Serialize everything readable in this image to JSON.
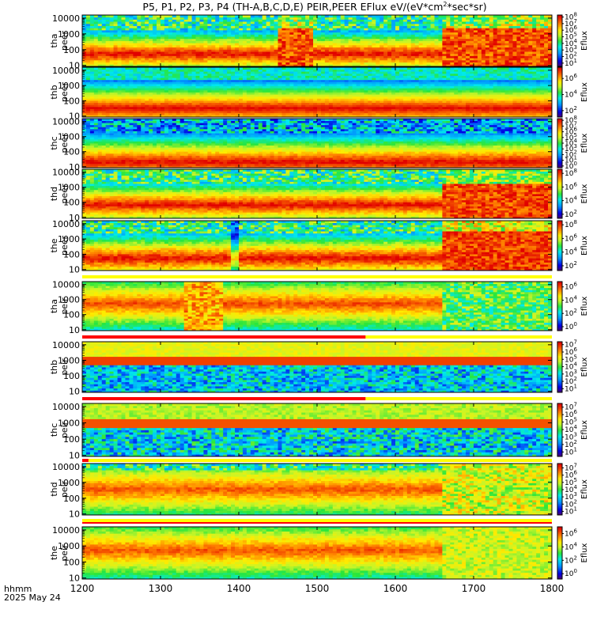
{
  "chart_data": {
    "type": "heatmap",
    "title": "P5, P1, P2, P3, P4 (TH-A,B,C,D,E) PEIR,PEER EFlux eV/(eV*cm",
    "title_sup": "2",
    "title_end": "*sec*sr)",
    "x_label_top": "hhmm",
    "x_label_date": "2025 May 24",
    "xlim": [
      1200,
      1800
    ],
    "x_ticks": [
      "1200",
      "1300",
      "1400",
      "1500",
      "1600",
      "1700",
      "1800"
    ],
    "y_scale": "log",
    "ylim": [
      5,
      30000
    ],
    "y_ticks": [
      "10",
      "100",
      "1000",
      "10000"
    ],
    "colorbar_label": "Eflux",
    "panels": [
      {
        "id": "tha-peer",
        "probe": "tha",
        "species": "peer",
        "profile": "electron_a",
        "cbar_exps": [
          8,
          7,
          6,
          5,
          4,
          3,
          2,
          1
        ],
        "cbar_lo": 0.5,
        "cbar_hi": 8.3
      },
      {
        "id": "thb-peer",
        "probe": "thb",
        "species": "peer",
        "profile": "electron_b",
        "cbar_exps": [
          6,
          4,
          2
        ],
        "cbar_lo": 1.2,
        "cbar_hi": 7.4
      },
      {
        "id": "thc-peer",
        "probe": "thc",
        "species": "peer",
        "profile": "electron_c",
        "cbar_exps": [
          8,
          7,
          6,
          5,
          4,
          3,
          2,
          1,
          0
        ],
        "cbar_lo": -0.3,
        "cbar_hi": 8.3
      },
      {
        "id": "thd-peer",
        "probe": "thd",
        "species": "peer",
        "profile": "electron_d",
        "cbar_exps": [
          8,
          6,
          4,
          2
        ],
        "cbar_lo": 1.4,
        "cbar_hi": 8.6
      },
      {
        "id": "the-peer",
        "probe": "the",
        "species": "peer",
        "profile": "electron_e",
        "cbar_exps": [
          8,
          6,
          4,
          2
        ],
        "cbar_lo": 1.3,
        "cbar_hi": 8.6
      },
      {
        "id": "tha-peir",
        "probe": "tha",
        "species": "peir",
        "profile": "ion_a",
        "cbar_exps": [
          6,
          4,
          2,
          0
        ],
        "cbar_lo": -0.6,
        "cbar_hi": 6.8
      },
      {
        "id": "thb-peir",
        "probe": "thb",
        "species": "peir",
        "profile": "ion_b",
        "cbar_exps": [
          7,
          6,
          5,
          4,
          3,
          2,
          1
        ],
        "cbar_lo": 0.5,
        "cbar_hi": 7.4
      },
      {
        "id": "thc-peir",
        "probe": "thc",
        "species": "peir",
        "profile": "ion_c",
        "cbar_exps": [
          7,
          6,
          5,
          4,
          3,
          2,
          1
        ],
        "cbar_lo": 0.4,
        "cbar_hi": 7.5
      },
      {
        "id": "thd-peir",
        "probe": "thd",
        "species": "peir",
        "profile": "ion_d",
        "cbar_exps": [
          7,
          6,
          5,
          4,
          3,
          2,
          1
        ],
        "cbar_lo": 0.5,
        "cbar_hi": 7.6
      },
      {
        "id": "the-peir",
        "probe": "the",
        "species": "peir",
        "profile": "ion_e",
        "cbar_exps": [
          6,
          4,
          2,
          0
        ],
        "cbar_lo": -0.8,
        "cbar_hi": 7.0
      }
    ]
  }
}
